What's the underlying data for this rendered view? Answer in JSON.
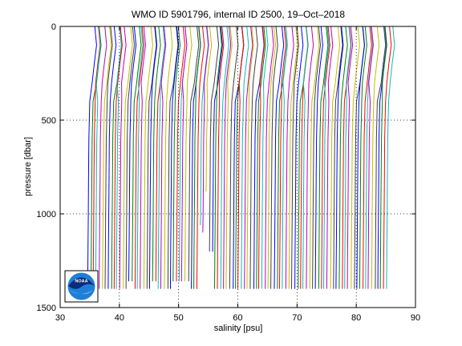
{
  "chart_data": {
    "type": "line",
    "title": "WMO ID 5901796, internal ID 2500, 19–Oct–2018",
    "xlabel": "salinity [psu]",
    "ylabel": "pressure [dbar]",
    "xlim": [
      30,
      90
    ],
    "ylim": [
      1500,
      0
    ],
    "y_inverted": true,
    "grid": true,
    "x_ticks": [
      "30",
      "40",
      "50",
      "60",
      "70",
      "80",
      "90"
    ],
    "y_ticks": [
      "0",
      "500",
      "1000",
      "1500"
    ],
    "profile_count": 102,
    "profile_offset_psu": 0.5,
    "first_profile_salinity_psu": 34.7,
    "depth_levels_dbar": [
      0,
      100,
      200,
      300,
      400,
      600,
      800,
      1000,
      1200,
      1400
    ],
    "series_colors": [
      "#0000ff",
      "#008000",
      "#ff0000",
      "#00bfbf",
      "#bf00bf",
      "#bfbf00",
      "#404040"
    ],
    "short_profiles": [
      {
        "profile": 14,
        "max_pressure_dbar": 1360
      },
      {
        "profile": 15,
        "max_pressure_dbar": 1360
      },
      {
        "profile": 22,
        "max_pressure_dbar": 1360
      },
      {
        "profile": 23,
        "max_pressure_dbar": 1360
      },
      {
        "profile": 29,
        "max_pressure_dbar": 1360
      },
      {
        "profile": 30,
        "max_pressure_dbar": 1360
      },
      {
        "profile": 31,
        "max_pressure_dbar": 1360
      },
      {
        "profile": 32,
        "max_pressure_dbar": 1360
      },
      {
        "profile": 33,
        "max_pressure_dbar": 1360
      },
      {
        "profile": 34,
        "max_pressure_dbar": 1360
      },
      {
        "profile": 38,
        "max_pressure_dbar": 1060
      },
      {
        "profile": 39,
        "max_pressure_dbar": 1100
      },
      {
        "profile": 40,
        "max_pressure_dbar": 880
      },
      {
        "profile": 41,
        "max_pressure_dbar": 1200
      },
      {
        "profile": 42,
        "max_pressure_dbar": 1200
      }
    ],
    "logo": "noaa-logo"
  }
}
